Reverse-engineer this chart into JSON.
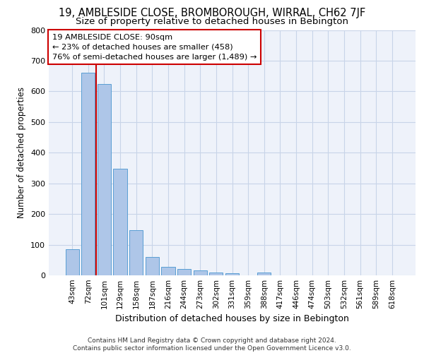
{
  "title1": "19, AMBLESIDE CLOSE, BROMBOROUGH, WIRRAL, CH62 7JF",
  "title2": "Size of property relative to detached houses in Bebington",
  "xlabel": "Distribution of detached houses by size in Bebington",
  "ylabel": "Number of detached properties",
  "categories": [
    "43sqm",
    "72sqm",
    "101sqm",
    "129sqm",
    "158sqm",
    "187sqm",
    "216sqm",
    "244sqm",
    "273sqm",
    "302sqm",
    "331sqm",
    "359sqm",
    "388sqm",
    "417sqm",
    "446sqm",
    "474sqm",
    "503sqm",
    "532sqm",
    "561sqm",
    "589sqm",
    "618sqm"
  ],
  "values": [
    85,
    660,
    625,
    347,
    147,
    60,
    27,
    20,
    17,
    10,
    7,
    0,
    10,
    0,
    0,
    0,
    0,
    0,
    0,
    0,
    0
  ],
  "bar_color": "#aec6e8",
  "bar_edge_color": "#5a9fd4",
  "annotation_text": "19 AMBLESIDE CLOSE: 90sqm\n← 23% of detached houses are smaller (458)\n76% of semi-detached houses are larger (1,489) →",
  "annotation_box_color": "white",
  "annotation_box_edge_color": "#cc0000",
  "vline_color": "#cc0000",
  "vline_x_index": 1.5,
  "ylim": [
    0,
    800
  ],
  "yticks": [
    0,
    100,
    200,
    300,
    400,
    500,
    600,
    700,
    800
  ],
  "footer_text": "Contains HM Land Registry data © Crown copyright and database right 2024.\nContains public sector information licensed under the Open Government Licence v3.0.",
  "bg_color": "#eef2fa",
  "grid_color": "#c8d4e8",
  "title1_fontsize": 10.5,
  "title2_fontsize": 9.5,
  "bar_width": 0.85
}
